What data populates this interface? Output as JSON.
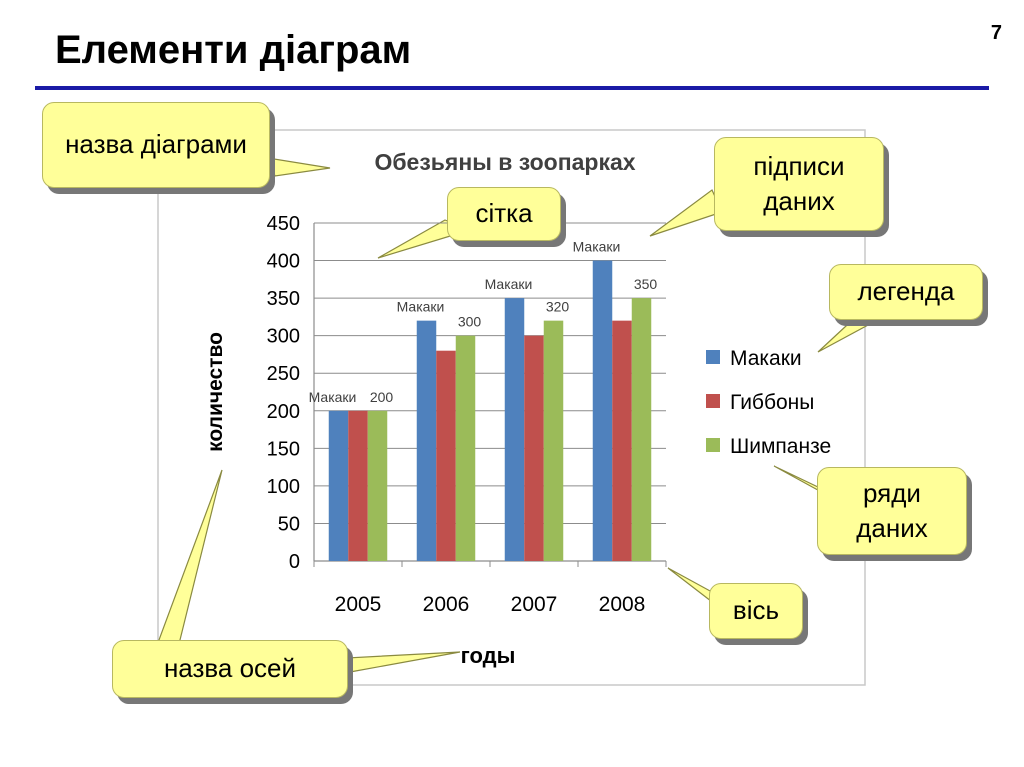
{
  "slide": {
    "title": "Елементи діаграм",
    "page_number": "7"
  },
  "callouts": {
    "chart_title": "назва діаграми",
    "grid": "сітка",
    "data_labels": "підписи даних",
    "legend": "легенда",
    "series": "ряди даних",
    "axis": "вісь",
    "axis_titles": "назва осей"
  },
  "colors": {
    "accent": "#1a1aa6",
    "callout_fill": "#ffff99",
    "series": [
      "#4f81bd",
      "#c0504d",
      "#9bbb59"
    ]
  },
  "chart_data": {
    "type": "bar",
    "title": "Обезьяны в зоопарках",
    "xlabel": "годы",
    "ylabel": "количество",
    "categories": [
      "2005",
      "2006",
      "2007",
      "2008"
    ],
    "ylim": [
      0,
      450
    ],
    "yticks": [
      0,
      50,
      100,
      150,
      200,
      250,
      300,
      350,
      400,
      450
    ],
    "grid": true,
    "legend_position": "right",
    "series": [
      {
        "name": "Макаки",
        "values": [
          200,
          320,
          350,
          400
        ],
        "color": "#4f81bd"
      },
      {
        "name": "Гиббоны",
        "values": [
          200,
          280,
          300,
          320
        ],
        "color": "#c0504d"
      },
      {
        "name": "Шимпанзе",
        "values": [
          200,
          300,
          320,
          350
        ],
        "color": "#9bbb59"
      }
    ],
    "data_labels": [
      {
        "series": 0,
        "category": 0,
        "text": "Макаки"
      },
      {
        "series": 2,
        "category": 0,
        "text": "200"
      },
      {
        "series": 0,
        "category": 1,
        "text": "Макаки"
      },
      {
        "series": 2,
        "category": 1,
        "text": "300"
      },
      {
        "series": 0,
        "category": 2,
        "text": "Макаки"
      },
      {
        "series": 2,
        "category": 2,
        "text": "320"
      },
      {
        "series": 0,
        "category": 3,
        "text": "Макаки"
      },
      {
        "series": 2,
        "category": 3,
        "text": "350"
      }
    ]
  }
}
